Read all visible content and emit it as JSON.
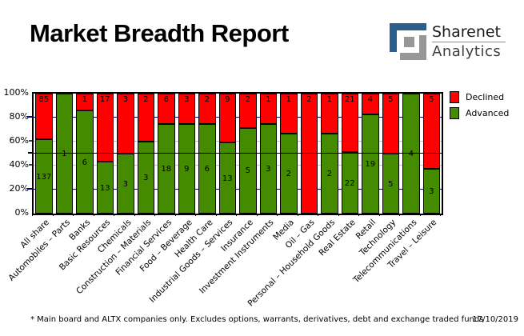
{
  "header": {
    "title": "Market Breadth Report",
    "logo": {
      "name": "Sharenet",
      "sub": "Analytics",
      "blue": "#2b5e8c",
      "gray": "#979797"
    }
  },
  "legend": [
    {
      "label": "Declined",
      "color": "#ff0000"
    },
    {
      "label": "Advanced",
      "color": "#458b00"
    }
  ],
  "chart_data": {
    "type": "bar",
    "stacked": true,
    "normalized": "percent_of_total",
    "title": "Market Breadth Report",
    "ylabel": "",
    "xlabel": "",
    "ylim": [
      0,
      100
    ],
    "y_ticks": [
      {
        "pct": 0,
        "label": "0%"
      },
      {
        "pct": 20,
        "label": "20%"
      },
      {
        "pct": 40,
        "label": "40%"
      },
      {
        "pct": 60,
        "label": "60%"
      },
      {
        "pct": 80,
        "label": "80%"
      },
      {
        "pct": 100,
        "label": "100%"
      }
    ],
    "gridlines": [
      {
        "pct": 20,
        "color": "#000080"
      },
      {
        "pct": 40,
        "color": "#c0c0c0"
      },
      {
        "pct": 60,
        "color": "#c0c0c0"
      },
      {
        "pct": 80,
        "color": "#000080"
      }
    ],
    "reference_line_pct": 50,
    "legend_position": "right-top",
    "categories": [
      "All share",
      "Automobiles – Parts",
      "Banks",
      "Basic Resources",
      "Chemicals",
      "Construction – Materials",
      "Financial Services",
      "Food – Beverage",
      "Health Care",
      "Industrial Goods – Services",
      "Insurance",
      "Investment Instruments",
      "Media",
      "Oil – Gas",
      "Personal – Household Goods",
      "Real Estate",
      "Retail",
      "Technology",
      "Telecommunications",
      "Travel – Leisure"
    ],
    "series": [
      {
        "name": "Declined",
        "color": "#ff0000",
        "values": [
          85,
          0,
          1,
          17,
          3,
          2,
          6,
          3,
          2,
          9,
          2,
          1,
          1,
          2,
          1,
          21,
          4,
          5,
          0,
          5
        ]
      },
      {
        "name": "Advanced",
        "color": "#458b00",
        "values": [
          137,
          1,
          6,
          13,
          3,
          3,
          18,
          9,
          6,
          13,
          5,
          3,
          2,
          0,
          2,
          22,
          19,
          5,
          4,
          3
        ]
      }
    ]
  },
  "footnote": {
    "text": "* Main board and ALTX companies only. Excludes options, warrants, derivatives, debt and exchange traded funds",
    "date": "17/10/2019"
  }
}
